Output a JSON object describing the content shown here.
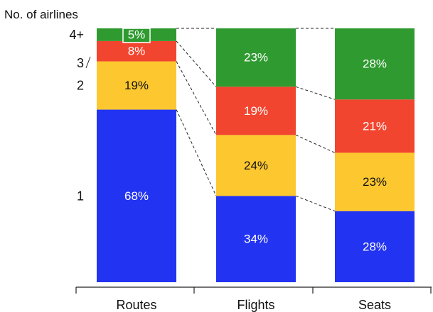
{
  "chart_data": {
    "type": "bar",
    "stacked": true,
    "normalized": true,
    "title": "No. of airlines",
    "categories": [
      "Routes",
      "Flights",
      "Seats"
    ],
    "series": [
      {
        "name": "1",
        "values": [
          68,
          34,
          28
        ],
        "labels": [
          "68%",
          "34%",
          "28%"
        ],
        "color": "#2233f2",
        "label_color": "#ffffff"
      },
      {
        "name": "2",
        "values": [
          19,
          24,
          23
        ],
        "labels": [
          "19%",
          "24%",
          "23%"
        ],
        "color": "#fcc72f",
        "label_color": "#111111"
      },
      {
        "name": "3",
        "values": [
          8,
          19,
          21
        ],
        "labels": [
          "8%",
          "19%",
          "21%"
        ],
        "color": "#f2452f",
        "label_color": "#ffffff"
      },
      {
        "name": "4+",
        "values": [
          5,
          23,
          28
        ],
        "labels": [
          "5%",
          "23%",
          "28%"
        ],
        "color": "#2f9a30",
        "label_color": "#ffffff"
      }
    ],
    "ylim": [
      0,
      100
    ],
    "connector_lines": "dashed",
    "grid": false,
    "legend": "left-side labels"
  }
}
